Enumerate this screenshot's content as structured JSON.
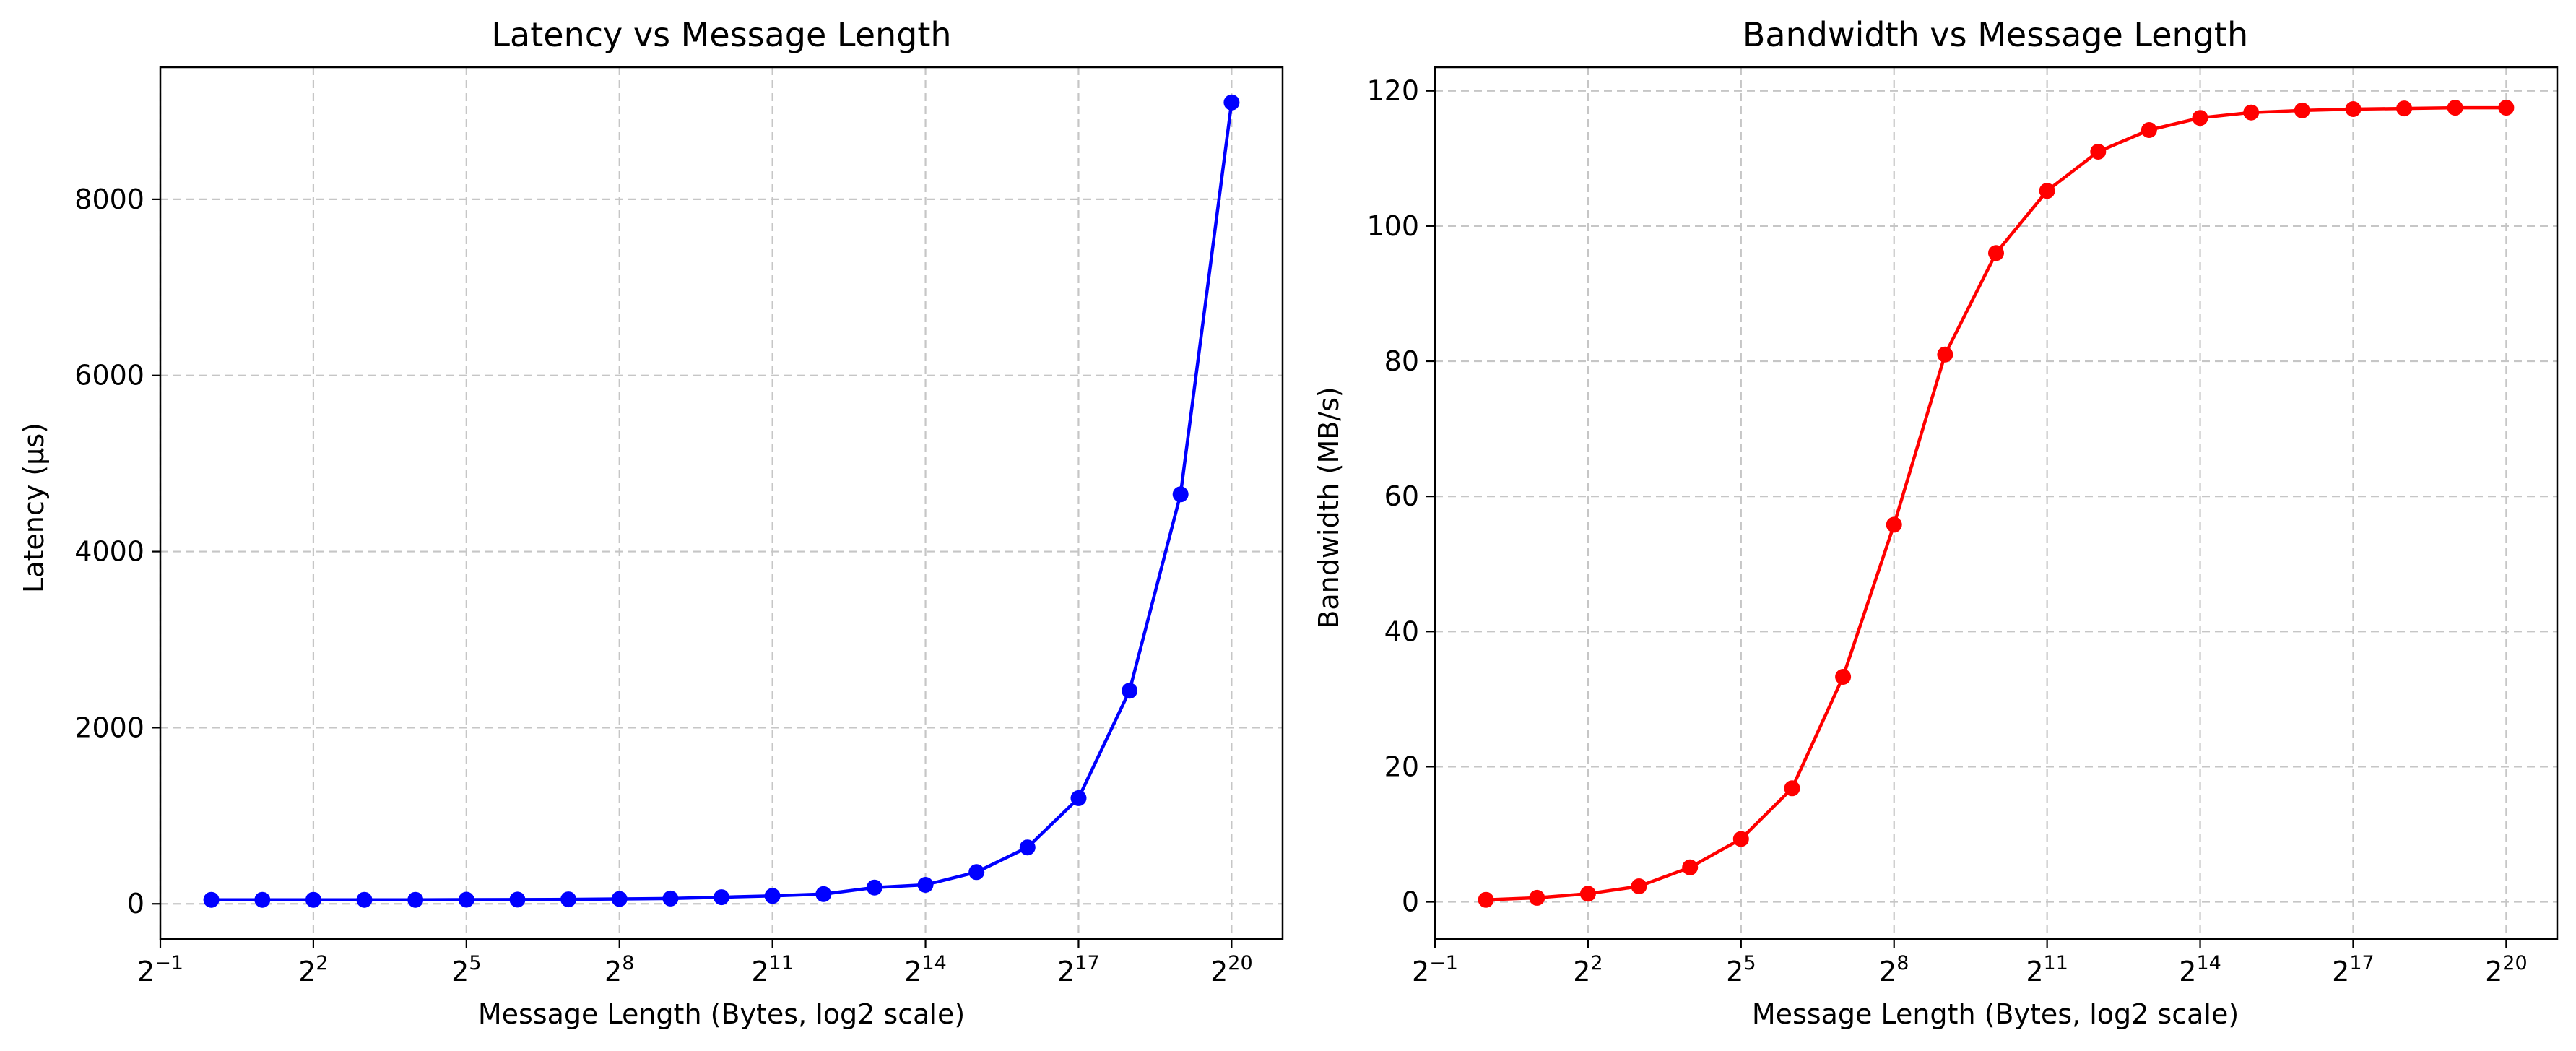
{
  "chart_data": [
    {
      "type": "line",
      "title": "Latency vs Message Length",
      "xlabel": "Message Length (Bytes, log2 scale)",
      "ylabel": "Latency (µs)",
      "x_scale": "log2",
      "xlim_exp": [
        -1,
        21
      ],
      "ylim": [
        -400,
        9500
      ],
      "grid": true,
      "x_ticks": [
        {
          "base": "2",
          "exp": "−1",
          "value_exp": -1
        },
        {
          "base": "2",
          "exp": "2",
          "value_exp": 2
        },
        {
          "base": "2",
          "exp": "5",
          "value_exp": 5
        },
        {
          "base": "2",
          "exp": "8",
          "value_exp": 8
        },
        {
          "base": "2",
          "exp": "11",
          "value_exp": 11
        },
        {
          "base": "2",
          "exp": "14",
          "value_exp": 14
        },
        {
          "base": "2",
          "exp": "17",
          "value_exp": 17
        },
        {
          "base": "2",
          "exp": "20",
          "value_exp": 20
        }
      ],
      "y_ticks": [
        {
          "value": 0,
          "label": "0"
        },
        {
          "value": 2000,
          "label": "2000"
        },
        {
          "value": 4000,
          "label": "4000"
        },
        {
          "value": 6000,
          "label": "6000"
        },
        {
          "value": 8000,
          "label": "8000"
        }
      ],
      "series": [
        {
          "color": "#0000ff",
          "marker": "circle",
          "x": [
            1,
            2,
            4,
            8,
            16,
            32,
            64,
            128,
            256,
            512,
            1024,
            2048,
            4096,
            8192,
            16384,
            32768,
            65536,
            131072,
            262144,
            524288,
            1048576
          ],
          "y": [
            45,
            45,
            45,
            45,
            45,
            47,
            48,
            50,
            55,
            60,
            75,
            90,
            110,
            185,
            215,
            360,
            640,
            1200,
            2420,
            4650,
            9100
          ]
        }
      ]
    },
    {
      "type": "line",
      "title": "Bandwidth vs Message Length",
      "xlabel": "Message Length (Bytes, log2 scale)",
      "ylabel": "Bandwidth (MB/s)",
      "x_scale": "log2",
      "xlim_exp": [
        -1,
        21
      ],
      "ylim": [
        -5.5,
        123.5
      ],
      "grid": true,
      "x_ticks": [
        {
          "base": "2",
          "exp": "−1",
          "value_exp": -1
        },
        {
          "base": "2",
          "exp": "2",
          "value_exp": 2
        },
        {
          "base": "2",
          "exp": "5",
          "value_exp": 5
        },
        {
          "base": "2",
          "exp": "8",
          "value_exp": 8
        },
        {
          "base": "2",
          "exp": "11",
          "value_exp": 11
        },
        {
          "base": "2",
          "exp": "14",
          "value_exp": 14
        },
        {
          "base": "2",
          "exp": "17",
          "value_exp": 17
        },
        {
          "base": "2",
          "exp": "20",
          "value_exp": 20
        }
      ],
      "y_ticks": [
        {
          "value": 0,
          "label": "0"
        },
        {
          "value": 20,
          "label": "20"
        },
        {
          "value": 40,
          "label": "40"
        },
        {
          "value": 60,
          "label": "60"
        },
        {
          "value": 80,
          "label": "80"
        },
        {
          "value": 100,
          "label": "100"
        },
        {
          "value": 120,
          "label": "120"
        }
      ],
      "series": [
        {
          "color": "#ff0000",
          "marker": "circle",
          "x": [
            1,
            2,
            4,
            8,
            16,
            32,
            64,
            128,
            256,
            512,
            1024,
            2048,
            4096,
            8192,
            16384,
            32768,
            65536,
            131072,
            262144,
            524288,
            1048576
          ],
          "y": [
            0.3,
            0.6,
            1.2,
            2.3,
            5.1,
            9.3,
            16.8,
            33.3,
            55.8,
            81.0,
            96.0,
            105.2,
            111.0,
            114.2,
            116.0,
            116.8,
            117.1,
            117.3,
            117.4,
            117.5,
            117.5
          ]
        }
      ]
    }
  ]
}
